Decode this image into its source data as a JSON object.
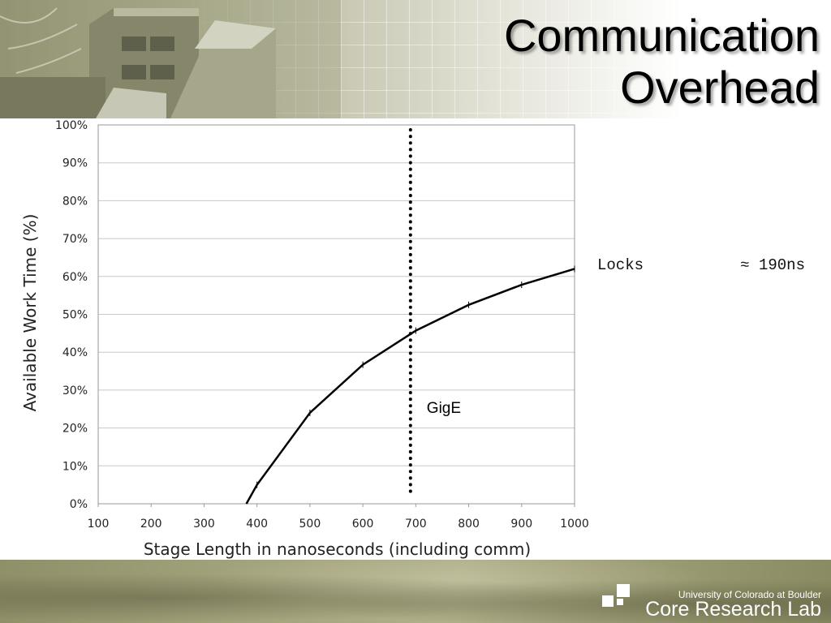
{
  "slide": {
    "title_line1": "Communication",
    "title_line2": "Overhead",
    "annotation": {
      "label": "Locks",
      "value": "≈ 190ns"
    },
    "footer": {
      "org": "University of Colorado at Boulder",
      "lab": "Core Research Lab"
    }
  },
  "chart_data": {
    "type": "line",
    "title": "",
    "xlabel": "Stage Length in nanoseconds (including comm)",
    "ylabel": "Available Work Time (%)",
    "xlim": [
      100,
      1000
    ],
    "ylim": [
      0,
      100
    ],
    "x_ticks": [
      100,
      200,
      300,
      400,
      500,
      600,
      700,
      800,
      900,
      1000
    ],
    "y_ticks": [
      0,
      10,
      20,
      30,
      40,
      50,
      60,
      70,
      80,
      90,
      100
    ],
    "y_tick_suffix": "%",
    "grid": "horizontal",
    "series": [
      {
        "x": [
          380,
          400,
          500,
          600,
          700,
          800,
          900,
          1000
        ],
        "y": [
          0,
          5,
          24,
          36.7,
          45.7,
          52.5,
          57.8,
          62
        ],
        "color": "#000000"
      }
    ],
    "annotations": [
      {
        "type": "vertical-dotted-line",
        "x": 690,
        "text": "GigE"
      }
    ]
  }
}
